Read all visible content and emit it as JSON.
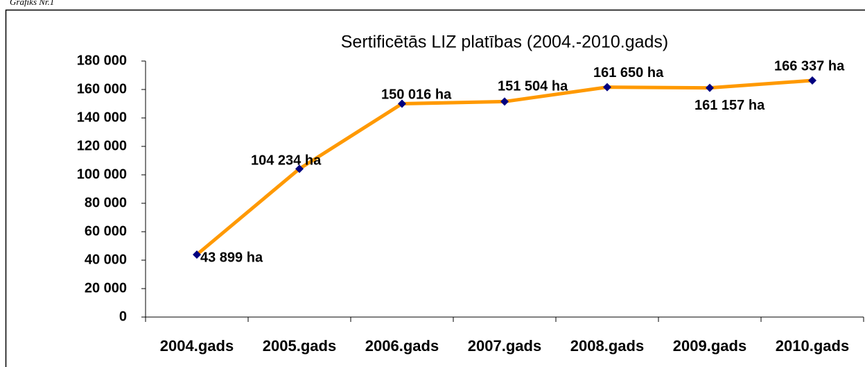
{
  "caption": "Grafiks Nr.1",
  "chart_data": {
    "type": "line",
    "title": "Sertificētās LIZ platības (2004.-2010.gads)",
    "categories": [
      "2004.gads",
      "2005.gads",
      "2006.gads",
      "2007.gads",
      "2008.gads",
      "2009.gads",
      "2010.gads"
    ],
    "values": [
      43899,
      104234,
      150016,
      151504,
      161650,
      161157,
      166337
    ],
    "value_labels": [
      "43 899 ha",
      "104 234 ha",
      "150 016 ha",
      "151 504 ha",
      "161 650 ha",
      "161 157 ha",
      "166 337 ha"
    ],
    "color": "#ff9900",
    "marker_color": "#000080",
    "ylim": [
      0,
      180000
    ],
    "yticks": [
      0,
      {
        "value": 20000,
        "label": "20 000"
      },
      {
        "value": 40000,
        "label": "40 000"
      },
      {
        "value": 60000,
        "label": "60 000"
      },
      {
        "value": 80000,
        "label": "80 000"
      },
      {
        "value": 100000,
        "label": "100 000"
      },
      {
        "value": 120000,
        "label": "120 000"
      },
      {
        "value": 140000,
        "label": "140 000"
      },
      {
        "value": 160000,
        "label": "160 000"
      },
      {
        "value": 180000,
        "label": "180 000"
      }
    ],
    "grid": false
  }
}
